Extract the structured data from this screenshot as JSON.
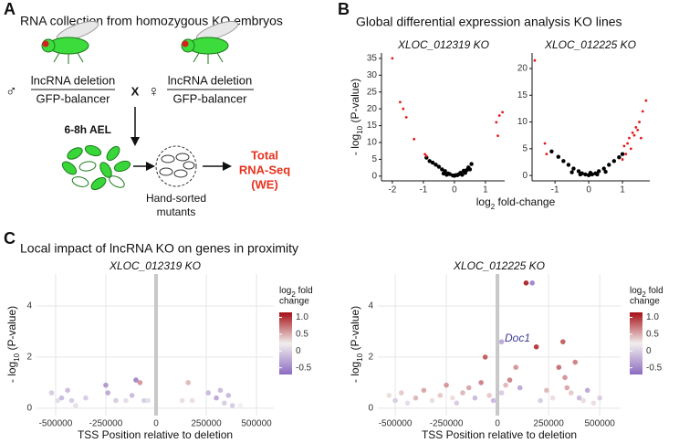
{
  "figure": {
    "panel_a": {
      "letter": "A",
      "title": "RNA collection from homozygous KO embryos",
      "male_symbol": "♂",
      "male_top": "lncRNA deletion",
      "male_bottom": "GFP-balancer",
      "cross": "X",
      "female_symbol": "♀",
      "female_top": "lncRNA deletion",
      "female_bottom": "GFP-balancer",
      "time": "6-8h AEL",
      "sorted": [
        "Hand-sorted",
        "mutants"
      ],
      "result": [
        "Total",
        "RNA-Seq",
        "(WE)"
      ]
    },
    "panel_b": {
      "letter": "B",
      "title": "Global differential expression analysis KO lines",
      "xlabel_parts": [
        "log",
        "2",
        " fold-change"
      ]
    },
    "panel_c": {
      "letter": "C",
      "title": "Local impact of lncRNA KO on genes in proximity"
    }
  },
  "chart_data": [
    {
      "type": "scatter",
      "title": "XLOC_012319 KO",
      "ylabel_parts": [
        "- log",
        "10",
        " (P-value)"
      ],
      "xlim": [
        -2.35,
        1.62
      ],
      "ylim": [
        -1.4,
        36.6
      ],
      "xticks": [
        -2,
        -1,
        0,
        1
      ],
      "yticks": [
        0,
        5,
        10,
        15,
        20,
        25,
        30,
        35
      ],
      "series": [
        {
          "color": "#000000",
          "x": [
            -0.9,
            -0.8,
            -0.7,
            -0.6,
            -0.5,
            -0.4,
            -0.35,
            -0.3,
            -0.25,
            -0.2,
            -0.15,
            -0.05,
            0,
            0.05,
            0.1,
            0.15,
            0.2,
            0.25,
            0.3,
            0.35,
            0.4,
            0.45,
            0.5,
            0.55
          ],
          "values": [
            5.5,
            4.5,
            4,
            3.4,
            2.8,
            2,
            0.8,
            1.5,
            0.4,
            0.8,
            0.6,
            0.2,
            0.1,
            0.3,
            0.3,
            0.6,
            1,
            0.4,
            1.6,
            1,
            1.8,
            2.6,
            2,
            3.6
          ]
        },
        {
          "color": "#e41a1c",
          "x": [
            -2.0,
            -1.75,
            -1.65,
            -1.55,
            -1.3,
            -0.95,
            -0.9,
            1.35,
            1.4,
            1.45,
            1.55
          ],
          "values": [
            35,
            22,
            20,
            17.5,
            11,
            6.5,
            6,
            16,
            12,
            18,
            19
          ]
        }
      ]
    },
    {
      "type": "scatter",
      "title": "XLOC_012225 KO",
      "xlim": [
        -1.68,
        1.81
      ],
      "ylim": [
        -1,
        22.9
      ],
      "xticks": [
        -1,
        0,
        1
      ],
      "yticks": [
        0,
        5,
        10,
        15,
        20
      ],
      "series": [
        {
          "color": "#000000",
          "x": [
            -1.1,
            -0.9,
            -0.75,
            -0.6,
            -0.45,
            -0.3,
            -0.2,
            -0.1,
            0,
            0.1,
            0.2,
            0.3,
            0.45,
            0.6,
            0.75,
            0.9,
            1.0,
            -0.5,
            0.5,
            -0.25,
            0.25,
            0.05
          ],
          "values": [
            4.5,
            3.5,
            2.7,
            2,
            1.3,
            0.8,
            0.4,
            0.2,
            0.05,
            0.2,
            0.4,
            0.8,
            1.3,
            2,
            2.7,
            3.4,
            4,
            0.6,
            0.7,
            0.2,
            0.2,
            0.5
          ]
        },
        {
          "color": "#e41a1c",
          "x": [
            -1.6,
            -1.3,
            -1.25,
            1.0,
            1.05,
            1.1,
            1.15,
            1.2,
            1.25,
            1.3,
            1.35,
            1.4,
            1.45,
            1.5,
            1.55,
            1.6,
            1.7
          ],
          "values": [
            21.5,
            6,
            4,
            3,
            5.5,
            4,
            6,
            7,
            5,
            8,
            7.5,
            9,
            8.5,
            10,
            7,
            12,
            14
          ]
        }
      ]
    },
    {
      "type": "scatter",
      "title": "XLOC_012319 KO",
      "xlabel": "TSS Position relative to deletion",
      "ylabel_parts": [
        "- log",
        "10",
        " (P-value)"
      ],
      "xlim": [
        -595000,
        586000
      ],
      "ylim": [
        -0.29,
        5.25
      ],
      "xticks": [
        -500000,
        -250000,
        0,
        250000,
        500000
      ],
      "yticks": [
        0,
        2,
        4
      ],
      "vline": 0,
      "colorbar": {
        "title_parts": [
          "log",
          "2",
          " fold"
        ],
        "title_line2": "change",
        "range": [
          -0.7,
          1.15
        ],
        "colors": [
          "#8c6bc0",
          "#f2eeee",
          "#a50f15"
        ],
        "ticks": [
          {
            "value": 1,
            "label": "1.0"
          },
          0.5,
          0,
          -0.5
        ]
      },
      "series": [
        {
          "x": [
            -520000,
            -490000,
            -470000,
            -440000,
            -420000,
            -400000,
            -350000,
            -250000,
            -240000,
            -200000,
            -150000,
            -120000,
            -100000,
            -80000,
            -60000,
            -40000,
            130000,
            160000,
            180000,
            260000,
            300000,
            320000,
            340000,
            360000,
            380000,
            420000
          ],
          "values": [
            0.6,
            0.3,
            0.4,
            0.7,
            0.3,
            0.1,
            0.4,
            0.9,
            0.6,
            0.3,
            0.3,
            0.5,
            1.1,
            1.0,
            0.3,
            0.3,
            0.3,
            1.0,
            0.3,
            0.6,
            0.4,
            0.7,
            0.2,
            0.5,
            0.1,
            0.1
          ],
          "color_values": [
            -0.2,
            -0.1,
            -0.3,
            -0.3,
            -0.2,
            -0.1,
            -0.2,
            -0.5,
            -0.4,
            -0.2,
            -0.1,
            -0.3,
            -0.6,
            0.5,
            -0.2,
            -0.1,
            0.1,
            0.3,
            0.1,
            -0.3,
            -0.4,
            -0.3,
            -0.2,
            -0.3,
            -0.2,
            0
          ]
        }
      ]
    },
    {
      "type": "scatter",
      "title": "XLOC_012225 KO",
      "xlabel": "TSS Position relative to deletion",
      "ylabel_parts": [
        "- log",
        "10",
        " (P-value)"
      ],
      "xlim": [
        -585000,
        602000
      ],
      "ylim": [
        -0.29,
        5.25
      ],
      "xticks": [
        -500000,
        -250000,
        0,
        250000,
        500000
      ],
      "yticks": [
        0,
        2,
        4
      ],
      "vline": 0,
      "annotation": "Doc1",
      "annotation_color": "#3a3a9a",
      "colorbar": {
        "title_parts": [
          "log",
          "2",
          " fold"
        ],
        "title_line2": "change",
        "range": [
          -0.7,
          1.15
        ],
        "colors": [
          "#8c6bc0",
          "#f2eeee",
          "#a50f15"
        ],
        "ticks": [
          {
            "value": 1,
            "label": "1.0"
          },
          0.5,
          0,
          -0.5
        ]
      },
      "series": [
        {
          "x": [
            -530000,
            -500000,
            -470000,
            -440000,
            -400000,
            -360000,
            -320000,
            -280000,
            -250000,
            -220000,
            -200000,
            -170000,
            -140000,
            -110000,
            -80000,
            -60000,
            -40000,
            -20000,
            20000,
            40000,
            60000,
            90000,
            110000,
            140000,
            170000,
            190000,
            210000,
            240000,
            270000,
            300000,
            320000,
            330000,
            340000,
            360000,
            380000,
            400000,
            420000,
            440000,
            470000,
            500000,
            20000
          ],
          "values": [
            0.5,
            0.3,
            0.6,
            0.2,
            0.4,
            0.7,
            0.3,
            0.5,
            0.9,
            0.4,
            0.2,
            0.6,
            0.8,
            0.4,
            1.0,
            2.0,
            0.5,
            0.3,
            0.6,
            0.9,
            1.1,
            1.6,
            0.8,
            4.9,
            4.9,
            2.4,
            0.3,
            0.7,
            0.4,
            1.6,
            2.6,
            1.2,
            0.8,
            0.6,
            1.8,
            0.4,
            0.3,
            0.7,
            0.2,
            0.4,
            2.6
          ],
          "color_values": [
            0.1,
            -0.2,
            0.2,
            -0.1,
            0.3,
            0.4,
            0.1,
            0.2,
            0.5,
            0.1,
            -0.2,
            0.3,
            0.4,
            -0.3,
            0.6,
            0.8,
            0.2,
            -0.3,
            -0.2,
            0.3,
            0.6,
            0.5,
            -0.4,
            1.1,
            -0.6,
            1.0,
            -0.2,
            0.3,
            0.1,
            0.7,
            0.8,
            0.5,
            0.4,
            0.2,
            0.6,
            -0.3,
            0.1,
            -0.4,
            0.1,
            -0.2,
            -0.4
          ]
        }
      ]
    }
  ]
}
